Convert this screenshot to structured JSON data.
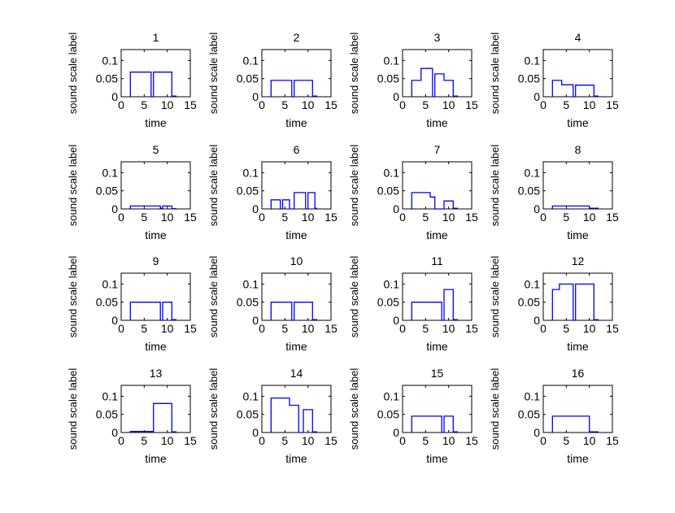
{
  "figure": {
    "background": "#ffffff",
    "line_color": "#0000ff",
    "axis_color": "#000000"
  },
  "chart_data": [
    {
      "type": "line",
      "title": "1",
      "xlabel": "time",
      "ylabel": "sound scale label",
      "xlim": [
        0,
        15
      ],
      "ylim": [
        0,
        0.13
      ],
      "xticks": [
        "0",
        "5",
        "10",
        "15"
      ],
      "yticks": [
        "0",
        "0.05",
        "0.1"
      ],
      "x": [
        2,
        2,
        6.5,
        6.5,
        7,
        7,
        11,
        11,
        12
      ],
      "y": [
        0,
        0.068,
        0.068,
        0,
        0,
        0.068,
        0.068,
        0.002,
        0.002
      ]
    },
    {
      "type": "line",
      "title": "2",
      "xlabel": "time",
      "ylabel": "sound scale label",
      "xlim": [
        0,
        15
      ],
      "ylim": [
        0,
        0.13
      ],
      "xticks": [
        "0",
        "5",
        "10",
        "15"
      ],
      "yticks": [
        "0",
        "0.05",
        "0.1"
      ],
      "x": [
        2,
        2,
        6.5,
        6.5,
        7,
        7,
        11,
        11,
        12
      ],
      "y": [
        0,
        0.045,
        0.045,
        0,
        0,
        0.045,
        0.045,
        0.002,
        0.002
      ]
    },
    {
      "type": "line",
      "title": "3",
      "xlabel": "time",
      "ylabel": "sound scale label",
      "xlim": [
        0,
        15
      ],
      "ylim": [
        0,
        0.13
      ],
      "xticks": [
        "0",
        "5",
        "10",
        "15"
      ],
      "yticks": [
        "0",
        "0.05",
        "0.1"
      ],
      "x": [
        2,
        2,
        4,
        4,
        6.5,
        6.5,
        7,
        7,
        9,
        9,
        11,
        11,
        12
      ],
      "y": [
        0,
        0.045,
        0.045,
        0.078,
        0.078,
        0,
        0,
        0.063,
        0.063,
        0.045,
        0.045,
        0.002,
        0.002
      ]
    },
    {
      "type": "line",
      "title": "4",
      "xlabel": "time",
      "ylabel": "sound scale label",
      "xlim": [
        0,
        15
      ],
      "ylim": [
        0,
        0.13
      ],
      "xticks": [
        "0",
        "5",
        "10",
        "15"
      ],
      "yticks": [
        "0",
        "0.05",
        "0.1"
      ],
      "x": [
        2,
        2,
        4,
        4,
        6.5,
        6.5,
        7,
        7,
        11,
        11,
        12
      ],
      "y": [
        0,
        0.045,
        0.045,
        0.033,
        0.033,
        0,
        0,
        0.032,
        0.032,
        0.002,
        0.002
      ]
    },
    {
      "type": "line",
      "title": "5",
      "xlabel": "time",
      "ylabel": "sound scale label",
      "xlim": [
        0,
        15
      ],
      "ylim": [
        0,
        0.13
      ],
      "xticks": [
        "0",
        "5",
        "10",
        "15"
      ],
      "yticks": [
        "0",
        "0.05",
        "0.1"
      ],
      "x": [
        2,
        2,
        8.5,
        8.5,
        9,
        9,
        11,
        11,
        12
      ],
      "y": [
        0,
        0.008,
        0.008,
        0.002,
        0.002,
        0.008,
        0.008,
        0.001,
        0.001
      ]
    },
    {
      "type": "line",
      "title": "6",
      "xlabel": "time",
      "ylabel": "sound scale label",
      "xlim": [
        0,
        15
      ],
      "ylim": [
        0,
        0.13
      ],
      "xticks": [
        "0",
        "5",
        "10",
        "15"
      ],
      "yticks": [
        "0",
        "0.05",
        "0.1"
      ],
      "x": [
        2,
        2,
        4,
        4,
        4.5,
        4.5,
        6,
        6,
        7,
        7,
        9.5,
        9.5,
        10,
        10,
        11.5,
        11.5,
        12
      ],
      "y": [
        0,
        0.025,
        0.025,
        0,
        0,
        0.025,
        0.025,
        0,
        0,
        0.045,
        0.045,
        0,
        0,
        0.045,
        0.045,
        0.002,
        0.002
      ]
    },
    {
      "type": "line",
      "title": "7",
      "xlabel": "time",
      "ylabel": "sound scale label",
      "xlim": [
        0,
        15
      ],
      "ylim": [
        0,
        0.13
      ],
      "xticks": [
        "0",
        "5",
        "10",
        "15"
      ],
      "yticks": [
        "0",
        "0.05",
        "0.1"
      ],
      "x": [
        2,
        2,
        6,
        6,
        7,
        7,
        9,
        9,
        11,
        11,
        12
      ],
      "y": [
        0,
        0.045,
        0.045,
        0.033,
        0.033,
        0,
        0,
        0.022,
        0.022,
        0.002,
        0.002
      ]
    },
    {
      "type": "line",
      "title": "8",
      "xlabel": "time",
      "ylabel": "sound scale label",
      "xlim": [
        0,
        15
      ],
      "ylim": [
        0,
        0.13
      ],
      "xticks": [
        "0",
        "5",
        "10",
        "15"
      ],
      "yticks": [
        "0",
        "0.05",
        "0.1"
      ],
      "x": [
        2,
        2,
        10,
        10,
        12
      ],
      "y": [
        0,
        0.008,
        0.008,
        0.002,
        0.002
      ]
    },
    {
      "type": "line",
      "title": "9",
      "xlabel": "time",
      "ylabel": "sound scale label",
      "xlim": [
        0,
        15
      ],
      "ylim": [
        0,
        0.13
      ],
      "xticks": [
        "0",
        "5",
        "10",
        "15"
      ],
      "yticks": [
        "0",
        "0.05",
        "0.1"
      ],
      "x": [
        2,
        2,
        8.5,
        8.5,
        9,
        9,
        11,
        11,
        12
      ],
      "y": [
        0,
        0.05,
        0.05,
        0,
        0,
        0.05,
        0.05,
        0.002,
        0.002
      ]
    },
    {
      "type": "line",
      "title": "10",
      "xlabel": "time",
      "ylabel": "sound scale label",
      "xlim": [
        0,
        15
      ],
      "ylim": [
        0,
        0.13
      ],
      "xticks": [
        "0",
        "5",
        "10",
        "15"
      ],
      "yticks": [
        "0",
        "0.05",
        "0.1"
      ],
      "x": [
        2,
        2,
        6.5,
        6.5,
        7,
        7,
        11,
        11,
        12
      ],
      "y": [
        0,
        0.05,
        0.05,
        0,
        0,
        0.05,
        0.05,
        0.002,
        0.002
      ]
    },
    {
      "type": "line",
      "title": "11",
      "xlabel": "time",
      "ylabel": "sound scale label",
      "xlim": [
        0,
        15
      ],
      "ylim": [
        0,
        0.13
      ],
      "xticks": [
        "0",
        "5",
        "10",
        "15"
      ],
      "yticks": [
        "0",
        "0.05",
        "0.1"
      ],
      "x": [
        2,
        2,
        8.5,
        8.5,
        9,
        9,
        11,
        11,
        12
      ],
      "y": [
        0,
        0.05,
        0.05,
        0,
        0,
        0.085,
        0.085,
        0.002,
        0.002
      ]
    },
    {
      "type": "line",
      "title": "12",
      "xlabel": "time",
      "ylabel": "sound scale label",
      "xlim": [
        0,
        15
      ],
      "ylim": [
        0,
        0.13
      ],
      "xticks": [
        "0",
        "5",
        "10",
        "15"
      ],
      "yticks": [
        "0",
        "0.05",
        "0.1"
      ],
      "x": [
        2,
        2,
        3.5,
        3.5,
        6.5,
        6.5,
        7,
        7,
        11,
        11,
        12
      ],
      "y": [
        0,
        0.085,
        0.085,
        0.1,
        0.1,
        0,
        0,
        0.1,
        0.1,
        0.002,
        0.002
      ]
    },
    {
      "type": "line",
      "title": "13",
      "xlabel": "time",
      "ylabel": "sound scale label",
      "xlim": [
        0,
        15
      ],
      "ylim": [
        0,
        0.13
      ],
      "xticks": [
        "0",
        "5",
        "10",
        "15"
      ],
      "yticks": [
        "0",
        "0.05",
        "0.1"
      ],
      "x": [
        2,
        2,
        7,
        7,
        11,
        11,
        12
      ],
      "y": [
        0,
        0.003,
        0.003,
        0.08,
        0.08,
        0.002,
        0.002
      ]
    },
    {
      "type": "line",
      "title": "14",
      "xlabel": "time",
      "ylabel": "sound scale label",
      "xlim": [
        0,
        15
      ],
      "ylim": [
        0,
        0.13
      ],
      "xticks": [
        "0",
        "5",
        "10",
        "15"
      ],
      "yticks": [
        "0",
        "0.05",
        "0.1"
      ],
      "x": [
        2,
        2,
        6,
        6,
        8,
        8,
        9,
        9,
        11,
        11,
        12
      ],
      "y": [
        0,
        0.095,
        0.095,
        0.075,
        0.075,
        0,
        0,
        0.063,
        0.063,
        0.002,
        0.002
      ]
    },
    {
      "type": "line",
      "title": "15",
      "xlabel": "time",
      "ylabel": "sound scale label",
      "xlim": [
        0,
        15
      ],
      "ylim": [
        0,
        0.13
      ],
      "xticks": [
        "0",
        "5",
        "10",
        "15"
      ],
      "yticks": [
        "0",
        "0.05",
        "0.1"
      ],
      "x": [
        2,
        2,
        8.5,
        8.5,
        9,
        9,
        11,
        11,
        12
      ],
      "y": [
        0,
        0.045,
        0.045,
        0,
        0,
        0.045,
        0.045,
        0.002,
        0.002
      ]
    },
    {
      "type": "line",
      "title": "16",
      "xlabel": "time",
      "ylabel": "sound scale label",
      "xlim": [
        0,
        15
      ],
      "ylim": [
        0,
        0.13
      ],
      "xticks": [
        "0",
        "5",
        "10",
        "15"
      ],
      "yticks": [
        "0",
        "0.05",
        "0.1"
      ],
      "x": [
        2,
        2,
        10,
        10,
        12
      ],
      "y": [
        0,
        0.045,
        0.045,
        0.002,
        0.002
      ]
    }
  ]
}
